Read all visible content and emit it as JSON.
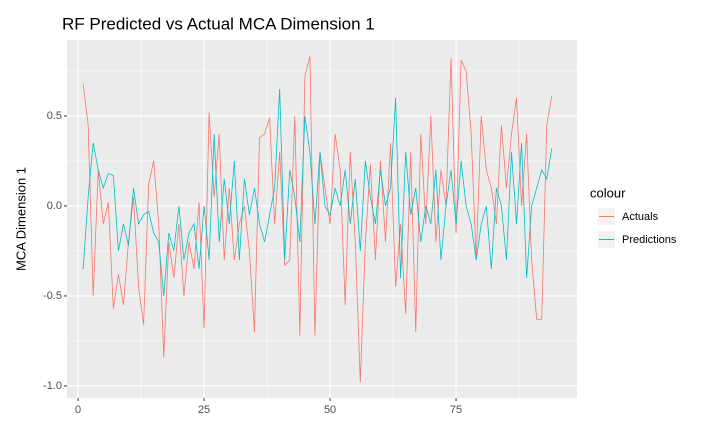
{
  "chart_data": {
    "type": "line",
    "title": "RF Predicted vs Actual MCA Dimension 1",
    "y_label": "MCA Dimension 1",
    "legend_title": "colour",
    "legend_position": "right",
    "grid": true,
    "xlim": [
      -2.2,
      99
    ],
    "ylim": [
      -1.067,
      0.922
    ],
    "xticks": [
      0,
      25,
      50,
      75
    ],
    "yticks": [
      {
        "value": -1,
        "label": "-1.0"
      },
      {
        "value": -0.5,
        "label": "-0.5"
      },
      {
        "value": 0,
        "label": "0.0"
      },
      {
        "value": 0.5,
        "label": "0.5"
      }
    ],
    "minor_xticks": [
      12.5,
      37.5,
      62.5,
      87.5
    ],
    "minor_yticks": [
      -0.75,
      -0.25,
      0.25,
      0.75
    ],
    "x": [
      1,
      2,
      3,
      4,
      5,
      6,
      7,
      8,
      9,
      10,
      11,
      12,
      13,
      14,
      15,
      16,
      17,
      18,
      19,
      20,
      21,
      22,
      23,
      24,
      25,
      26,
      27,
      28,
      29,
      30,
      31,
      32,
      33,
      34,
      35,
      36,
      37,
      38,
      39,
      40,
      41,
      42,
      43,
      44,
      45,
      46,
      47,
      48,
      49,
      50,
      51,
      52,
      53,
      54,
      55,
      56,
      57,
      58,
      59,
      60,
      61,
      62,
      63,
      64,
      65,
      66,
      67,
      68,
      69,
      70,
      71,
      72,
      73,
      74,
      75,
      76,
      77,
      78,
      79,
      80,
      81,
      82,
      83,
      84,
      85,
      86,
      87,
      88,
      89,
      90,
      91,
      92,
      93,
      94
    ],
    "series": [
      {
        "name": "Actuals",
        "color": "#F8766D",
        "values": [
          0.68,
          0.45,
          -0.5,
          0.2,
          -0.1,
          0.02,
          -0.57,
          -0.38,
          -0.55,
          -0.2,
          0.05,
          -0.45,
          -0.66,
          0.12,
          0.25,
          -0.1,
          -0.84,
          -0.2,
          -0.4,
          -0.1,
          -0.5,
          -0.2,
          -0.35,
          0.02,
          -0.68,
          0.52,
          0.05,
          0.4,
          -0.3,
          0.1,
          -0.3,
          -0.1,
          0.0,
          -0.25,
          -0.7,
          0.38,
          0.4,
          0.49,
          -0.1,
          0.3,
          -0.33,
          -0.3,
          0.5,
          -0.72,
          0.72,
          0.83,
          -0.72,
          0.3,
          0.1,
          -0.1,
          0.4,
          0.2,
          -0.55,
          0.3,
          -0.2,
          -0.98,
          -0.2,
          0.23,
          -0.3,
          0.25,
          -0.2,
          0.35,
          -0.45,
          -0.1,
          -0.6,
          0.3,
          -0.7,
          0.4,
          -0.1,
          0.5,
          -0.2,
          0.2,
          0.0,
          0.82,
          -0.15,
          0.81,
          0.75,
          0.4,
          -0.3,
          0.5,
          0.2,
          0.1,
          -0.1,
          0.45,
          0.1,
          0.4,
          0.6,
          0.0,
          0.4,
          -0.3,
          -0.63,
          -0.63,
          0.45,
          0.61
        ]
      },
      {
        "name": "Predictions",
        "color": "#00BFC4",
        "values": [
          -0.35,
          0.05,
          0.35,
          0.2,
          0.1,
          0.18,
          0.17,
          -0.25,
          -0.1,
          -0.22,
          0.1,
          -0.1,
          -0.05,
          -0.03,
          -0.15,
          -0.2,
          -0.5,
          -0.15,
          -0.25,
          0.0,
          -0.3,
          -0.15,
          -0.1,
          -0.35,
          0.0,
          -0.3,
          0.4,
          -0.2,
          0.15,
          -0.1,
          0.25,
          -0.3,
          0.15,
          -0.05,
          0.1,
          -0.1,
          -0.2,
          -0.05,
          0.1,
          0.65,
          -0.3,
          0.2,
          0.05,
          -0.2,
          0.5,
          0.3,
          -0.1,
          0.3,
          0.0,
          -0.05,
          0.1,
          0.0,
          0.2,
          -0.1,
          0.15,
          -0.25,
          0.25,
          0.05,
          -0.1,
          0.2,
          0.0,
          0.1,
          0.6,
          -0.4,
          0.3,
          -0.05,
          0.1,
          -0.2,
          0.0,
          -0.1,
          0.2,
          -0.3,
          0.0,
          0.2,
          -0.1,
          0.25,
          0.0,
          -0.1,
          -0.3,
          -0.1,
          0.0,
          -0.35,
          0.1,
          0.0,
          -0.3,
          0.3,
          -0.1,
          0.35,
          -0.4,
          0.0,
          0.1,
          0.2,
          0.15,
          0.32
        ]
      }
    ]
  }
}
